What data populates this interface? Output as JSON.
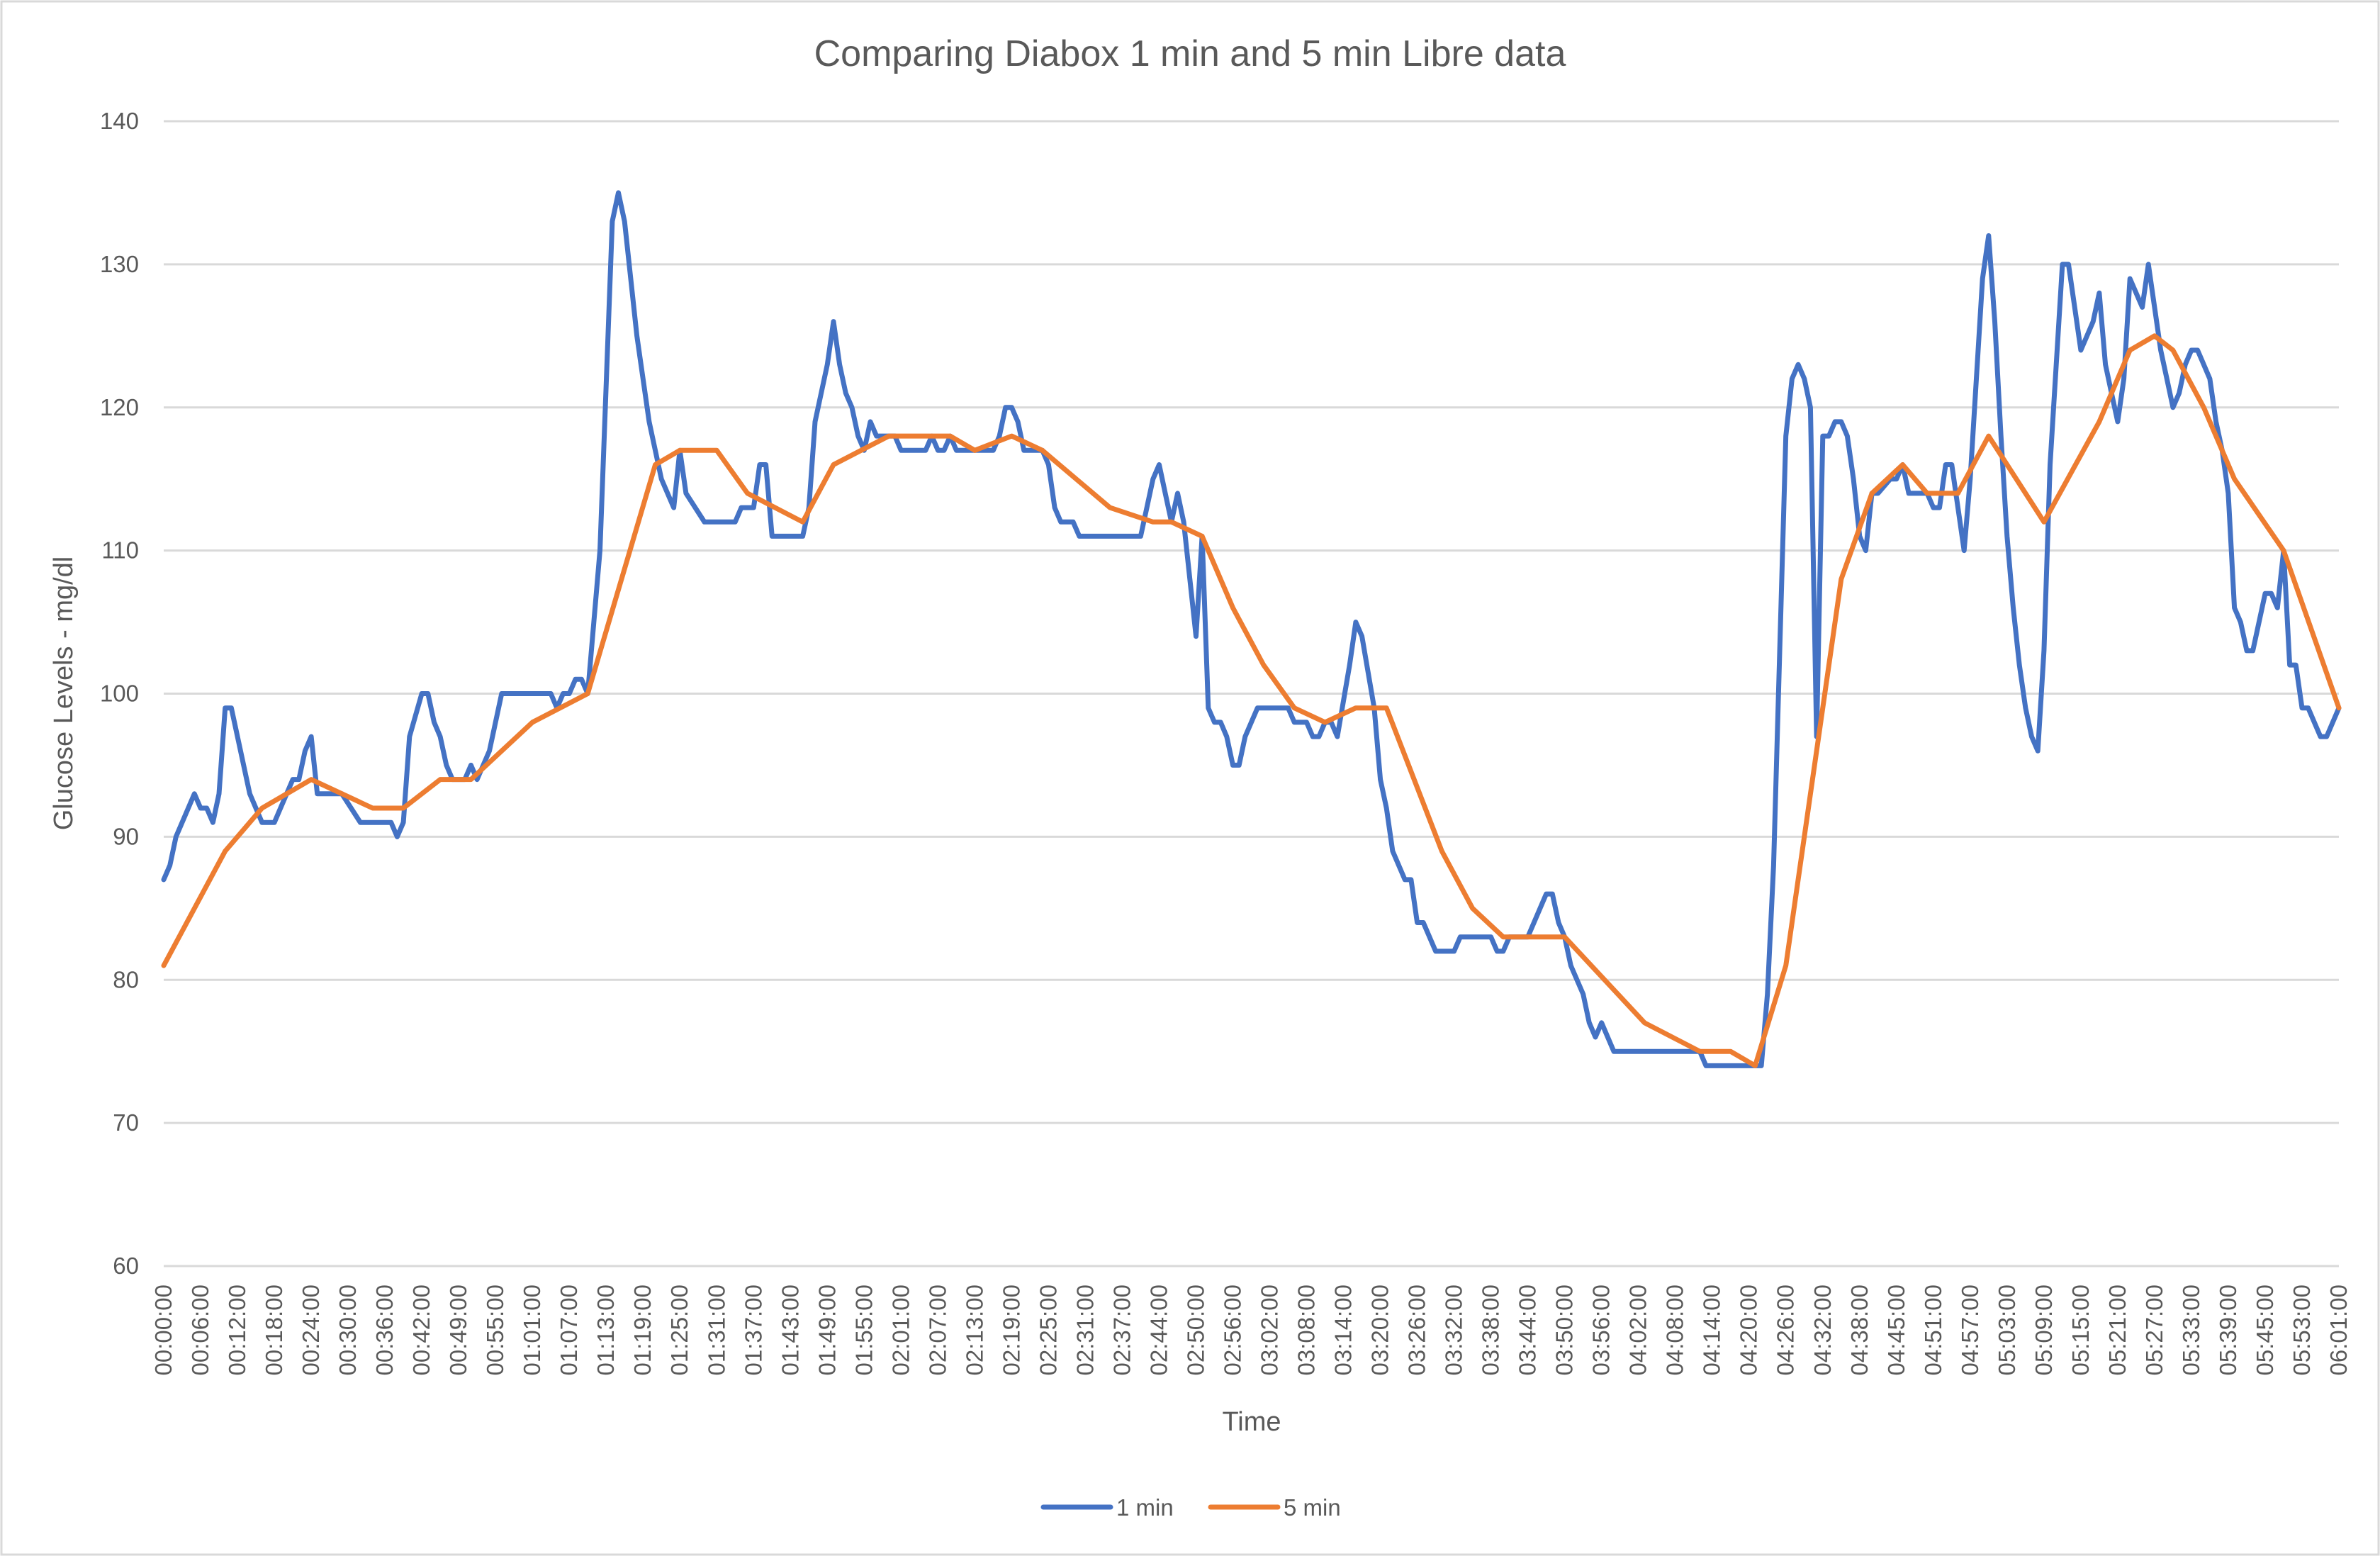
{
  "chart_data": {
    "type": "line",
    "title": "Comparing Diabox 1 min and 5 min Libre data",
    "xlabel": "Time",
    "ylabel": "Glucose Levels - mg/dl",
    "ylim": [
      60,
      140
    ],
    "yticks": [
      60,
      70,
      80,
      90,
      100,
      110,
      120,
      130,
      140
    ],
    "grid": true,
    "legend_position": "bottom",
    "x_index_range": [
      0,
      354
    ],
    "x_tick_step": 6,
    "x_tick_labels": [
      "00:00:00",
      "00:06:00",
      "00:12:00",
      "00:18:00",
      "00:24:00",
      "00:30:00",
      "00:36:00",
      "00:42:00",
      "00:49:00",
      "00:55:00",
      "01:01:00",
      "01:07:00",
      "01:13:00",
      "01:19:00",
      "01:25:00",
      "01:31:00",
      "01:37:00",
      "01:43:00",
      "01:49:00",
      "01:55:00",
      "02:01:00",
      "02:07:00",
      "02:13:00",
      "02:19:00",
      "02:25:00",
      "02:31:00",
      "02:37:00",
      "02:44:00",
      "02:50:00",
      "02:56:00",
      "03:02:00",
      "03:08:00",
      "03:14:00",
      "03:20:00",
      "03:26:00",
      "03:32:00",
      "03:38:00",
      "03:44:00",
      "03:50:00",
      "03:56:00",
      "04:02:00",
      "04:08:00",
      "04:14:00",
      "04:20:00",
      "04:26:00",
      "04:32:00",
      "04:38:00",
      "04:45:00",
      "04:51:00",
      "04:57:00",
      "05:03:00",
      "05:09:00",
      "05:15:00",
      "05:21:00",
      "05:27:00",
      "05:33:00",
      "05:39:00",
      "05:45:00",
      "05:53:00",
      "06:01:00"
    ],
    "series": [
      {
        "name": "1 min",
        "color": "#4472c4",
        "points": [
          [
            0,
            87
          ],
          [
            1,
            88
          ],
          [
            2,
            90
          ],
          [
            5,
            93
          ],
          [
            6,
            92
          ],
          [
            7,
            92
          ],
          [
            8,
            91
          ],
          [
            9,
            93
          ],
          [
            10,
            99
          ],
          [
            11,
            99
          ],
          [
            14,
            93
          ],
          [
            16,
            91
          ],
          [
            18,
            91
          ],
          [
            21,
            94
          ],
          [
            22,
            94
          ],
          [
            23,
            96
          ],
          [
            24,
            97
          ],
          [
            25,
            93
          ],
          [
            29,
            93
          ],
          [
            32,
            91
          ],
          [
            37,
            91
          ],
          [
            38,
            90
          ],
          [
            39,
            91
          ],
          [
            40,
            97
          ],
          [
            42,
            100
          ],
          [
            43,
            100
          ],
          [
            44,
            98
          ],
          [
            45,
            97
          ],
          [
            46,
            95
          ],
          [
            47,
            94
          ],
          [
            49,
            94
          ],
          [
            50,
            95
          ],
          [
            51,
            94
          ],
          [
            53,
            96
          ],
          [
            55,
            100
          ],
          [
            63,
            100
          ],
          [
            64,
            99
          ],
          [
            65,
            100
          ],
          [
            66,
            100
          ],
          [
            67,
            101
          ],
          [
            68,
            101
          ],
          [
            69,
            100
          ],
          [
            71,
            110
          ],
          [
            73,
            133
          ],
          [
            74,
            135
          ],
          [
            75,
            133
          ],
          [
            77,
            125
          ],
          [
            79,
            119
          ],
          [
            81,
            115
          ],
          [
            83,
            113
          ],
          [
            84,
            117
          ],
          [
            85,
            114
          ],
          [
            88,
            112
          ],
          [
            93,
            112
          ],
          [
            94,
            113
          ],
          [
            96,
            113
          ],
          [
            97,
            116
          ],
          [
            98,
            116
          ],
          [
            99,
            111
          ],
          [
            104,
            111
          ],
          [
            105,
            113
          ],
          [
            106,
            119
          ],
          [
            108,
            123
          ],
          [
            109,
            126
          ],
          [
            110,
            123
          ],
          [
            111,
            121
          ],
          [
            112,
            120
          ],
          [
            113,
            118
          ],
          [
            114,
            117
          ],
          [
            115,
            119
          ],
          [
            116,
            118
          ],
          [
            119,
            118
          ],
          [
            120,
            117
          ],
          [
            124,
            117
          ],
          [
            125,
            118
          ],
          [
            126,
            117
          ],
          [
            127,
            117
          ],
          [
            128,
            118
          ],
          [
            129,
            117
          ],
          [
            135,
            117
          ],
          [
            136,
            118
          ],
          [
            137,
            120
          ],
          [
            138,
            120
          ],
          [
            139,
            119
          ],
          [
            140,
            117
          ],
          [
            143,
            117
          ],
          [
            144,
            116
          ],
          [
            145,
            113
          ],
          [
            146,
            112
          ],
          [
            148,
            112
          ],
          [
            149,
            111
          ],
          [
            159,
            111
          ],
          [
            160,
            113
          ],
          [
            161,
            115
          ],
          [
            162,
            116
          ],
          [
            163,
            114
          ],
          [
            164,
            112
          ],
          [
            165,
            114
          ],
          [
            166,
            112
          ],
          [
            167,
            108
          ],
          [
            168,
            104
          ],
          [
            169,
            111
          ],
          [
            170,
            99
          ],
          [
            171,
            98
          ],
          [
            172,
            98
          ],
          [
            173,
            97
          ],
          [
            174,
            95
          ],
          [
            175,
            95
          ],
          [
            176,
            97
          ],
          [
            178,
            99
          ],
          [
            183,
            99
          ],
          [
            184,
            98
          ],
          [
            186,
            98
          ],
          [
            187,
            97
          ],
          [
            188,
            97
          ],
          [
            189,
            98
          ],
          [
            190,
            98
          ],
          [
            191,
            97
          ],
          [
            193,
            102
          ],
          [
            194,
            105
          ],
          [
            195,
            104
          ],
          [
            197,
            99
          ],
          [
            198,
            94
          ],
          [
            199,
            92
          ],
          [
            200,
            89
          ],
          [
            202,
            87
          ],
          [
            203,
            87
          ],
          [
            204,
            84
          ],
          [
            205,
            84
          ],
          [
            207,
            82
          ],
          [
            210,
            82
          ],
          [
            211,
            83
          ],
          [
            216,
            83
          ],
          [
            217,
            82
          ],
          [
            218,
            82
          ],
          [
            219,
            83
          ],
          [
            222,
            83
          ],
          [
            223,
            84
          ],
          [
            225,
            86
          ],
          [
            226,
            86
          ],
          [
            227,
            84
          ],
          [
            228,
            83
          ],
          [
            229,
            81
          ],
          [
            231,
            79
          ],
          [
            232,
            77
          ],
          [
            233,
            76
          ],
          [
            234,
            77
          ],
          [
            236,
            75
          ],
          [
            250,
            75
          ],
          [
            251,
            74
          ],
          [
            259,
            74
          ],
          [
            260,
            74
          ],
          [
            261,
            79
          ],
          [
            262,
            88
          ],
          [
            264,
            118
          ],
          [
            265,
            122
          ],
          [
            266,
            123
          ],
          [
            267,
            122
          ],
          [
            268,
            120
          ],
          [
            269,
            97
          ],
          [
            270,
            118
          ],
          [
            271,
            118
          ],
          [
            272,
            119
          ],
          [
            273,
            119
          ],
          [
            274,
            118
          ],
          [
            275,
            115
          ],
          [
            276,
            111
          ],
          [
            277,
            110
          ],
          [
            278,
            114
          ],
          [
            279,
            114
          ],
          [
            281,
            115
          ],
          [
            282,
            115
          ],
          [
            283,
            116
          ],
          [
            284,
            114
          ],
          [
            287,
            114
          ],
          [
            288,
            113
          ],
          [
            289,
            113
          ],
          [
            290,
            116
          ],
          [
            291,
            116
          ],
          [
            293,
            110
          ],
          [
            294,
            115
          ],
          [
            295,
            122
          ],
          [
            296,
            129
          ],
          [
            297,
            132
          ],
          [
            298,
            126
          ],
          [
            299,
            118
          ],
          [
            300,
            111
          ],
          [
            301,
            106
          ],
          [
            302,
            102
          ],
          [
            303,
            99
          ],
          [
            304,
            97
          ],
          [
            305,
            96
          ],
          [
            306,
            103
          ],
          [
            307,
            116
          ],
          [
            308,
            123
          ],
          [
            309,
            130
          ],
          [
            310,
            130
          ],
          [
            311,
            127
          ],
          [
            312,
            124
          ],
          [
            313,
            125
          ],
          [
            314,
            126
          ],
          [
            315,
            128
          ],
          [
            316,
            123
          ],
          [
            317,
            121
          ],
          [
            318,
            119
          ],
          [
            319,
            122
          ],
          [
            320,
            129
          ],
          [
            321,
            128
          ],
          [
            322,
            127
          ],
          [
            323,
            130
          ],
          [
            324,
            127
          ],
          [
            325,
            124
          ],
          [
            326,
            122
          ],
          [
            327,
            120
          ],
          [
            328,
            121
          ],
          [
            329,
            123
          ],
          [
            330,
            124
          ],
          [
            331,
            124
          ],
          [
            332,
            123
          ],
          [
            333,
            122
          ],
          [
            334,
            119
          ],
          [
            335,
            117
          ],
          [
            336,
            114
          ],
          [
            337,
            106
          ],
          [
            338,
            105
          ],
          [
            339,
            103
          ],
          [
            340,
            103
          ],
          [
            342,
            107
          ],
          [
            343,
            107
          ],
          [
            344,
            106
          ],
          [
            345,
            110
          ],
          [
            346,
            102
          ],
          [
            347,
            102
          ],
          [
            348,
            99
          ],
          [
            349,
            99
          ],
          [
            350,
            98
          ],
          [
            351,
            97
          ],
          [
            352,
            97
          ],
          [
            354,
            99
          ]
        ]
      },
      {
        "name": "5 min",
        "color": "#ed7d31",
        "points": [
          [
            0,
            81
          ],
          [
            10,
            89
          ],
          [
            16,
            92
          ],
          [
            20,
            93
          ],
          [
            24,
            94
          ],
          [
            34,
            92
          ],
          [
            39,
            92
          ],
          [
            45,
            94
          ],
          [
            50,
            94
          ],
          [
            60,
            98
          ],
          [
            69,
            100
          ],
          [
            80,
            116
          ],
          [
            84,
            117
          ],
          [
            90,
            117
          ],
          [
            95,
            114
          ],
          [
            104,
            112
          ],
          [
            109,
            116
          ],
          [
            118,
            118
          ],
          [
            128,
            118
          ],
          [
            132,
            117
          ],
          [
            138,
            118
          ],
          [
            143,
            117
          ],
          [
            154,
            113
          ],
          [
            161,
            112
          ],
          [
            164,
            112
          ],
          [
            169,
            111
          ],
          [
            174,
            106
          ],
          [
            179,
            102
          ],
          [
            184,
            99
          ],
          [
            189,
            98
          ],
          [
            194,
            99
          ],
          [
            199,
            99
          ],
          [
            208,
            89
          ],
          [
            213,
            85
          ],
          [
            218,
            83
          ],
          [
            228,
            83
          ],
          [
            241,
            77
          ],
          [
            250,
            75
          ],
          [
            255,
            75
          ],
          [
            259,
            74
          ],
          [
            264,
            81
          ],
          [
            273,
            108
          ],
          [
            278,
            114
          ],
          [
            283,
            116
          ],
          [
            287,
            114
          ],
          [
            292,
            114
          ],
          [
            297,
            118
          ],
          [
            306,
            112
          ],
          [
            315,
            119
          ],
          [
            320,
            124
          ],
          [
            324,
            125
          ],
          [
            327,
            124
          ],
          [
            332,
            120
          ],
          [
            337,
            115
          ],
          [
            345,
            110
          ],
          [
            354,
            99
          ]
        ]
      }
    ]
  }
}
